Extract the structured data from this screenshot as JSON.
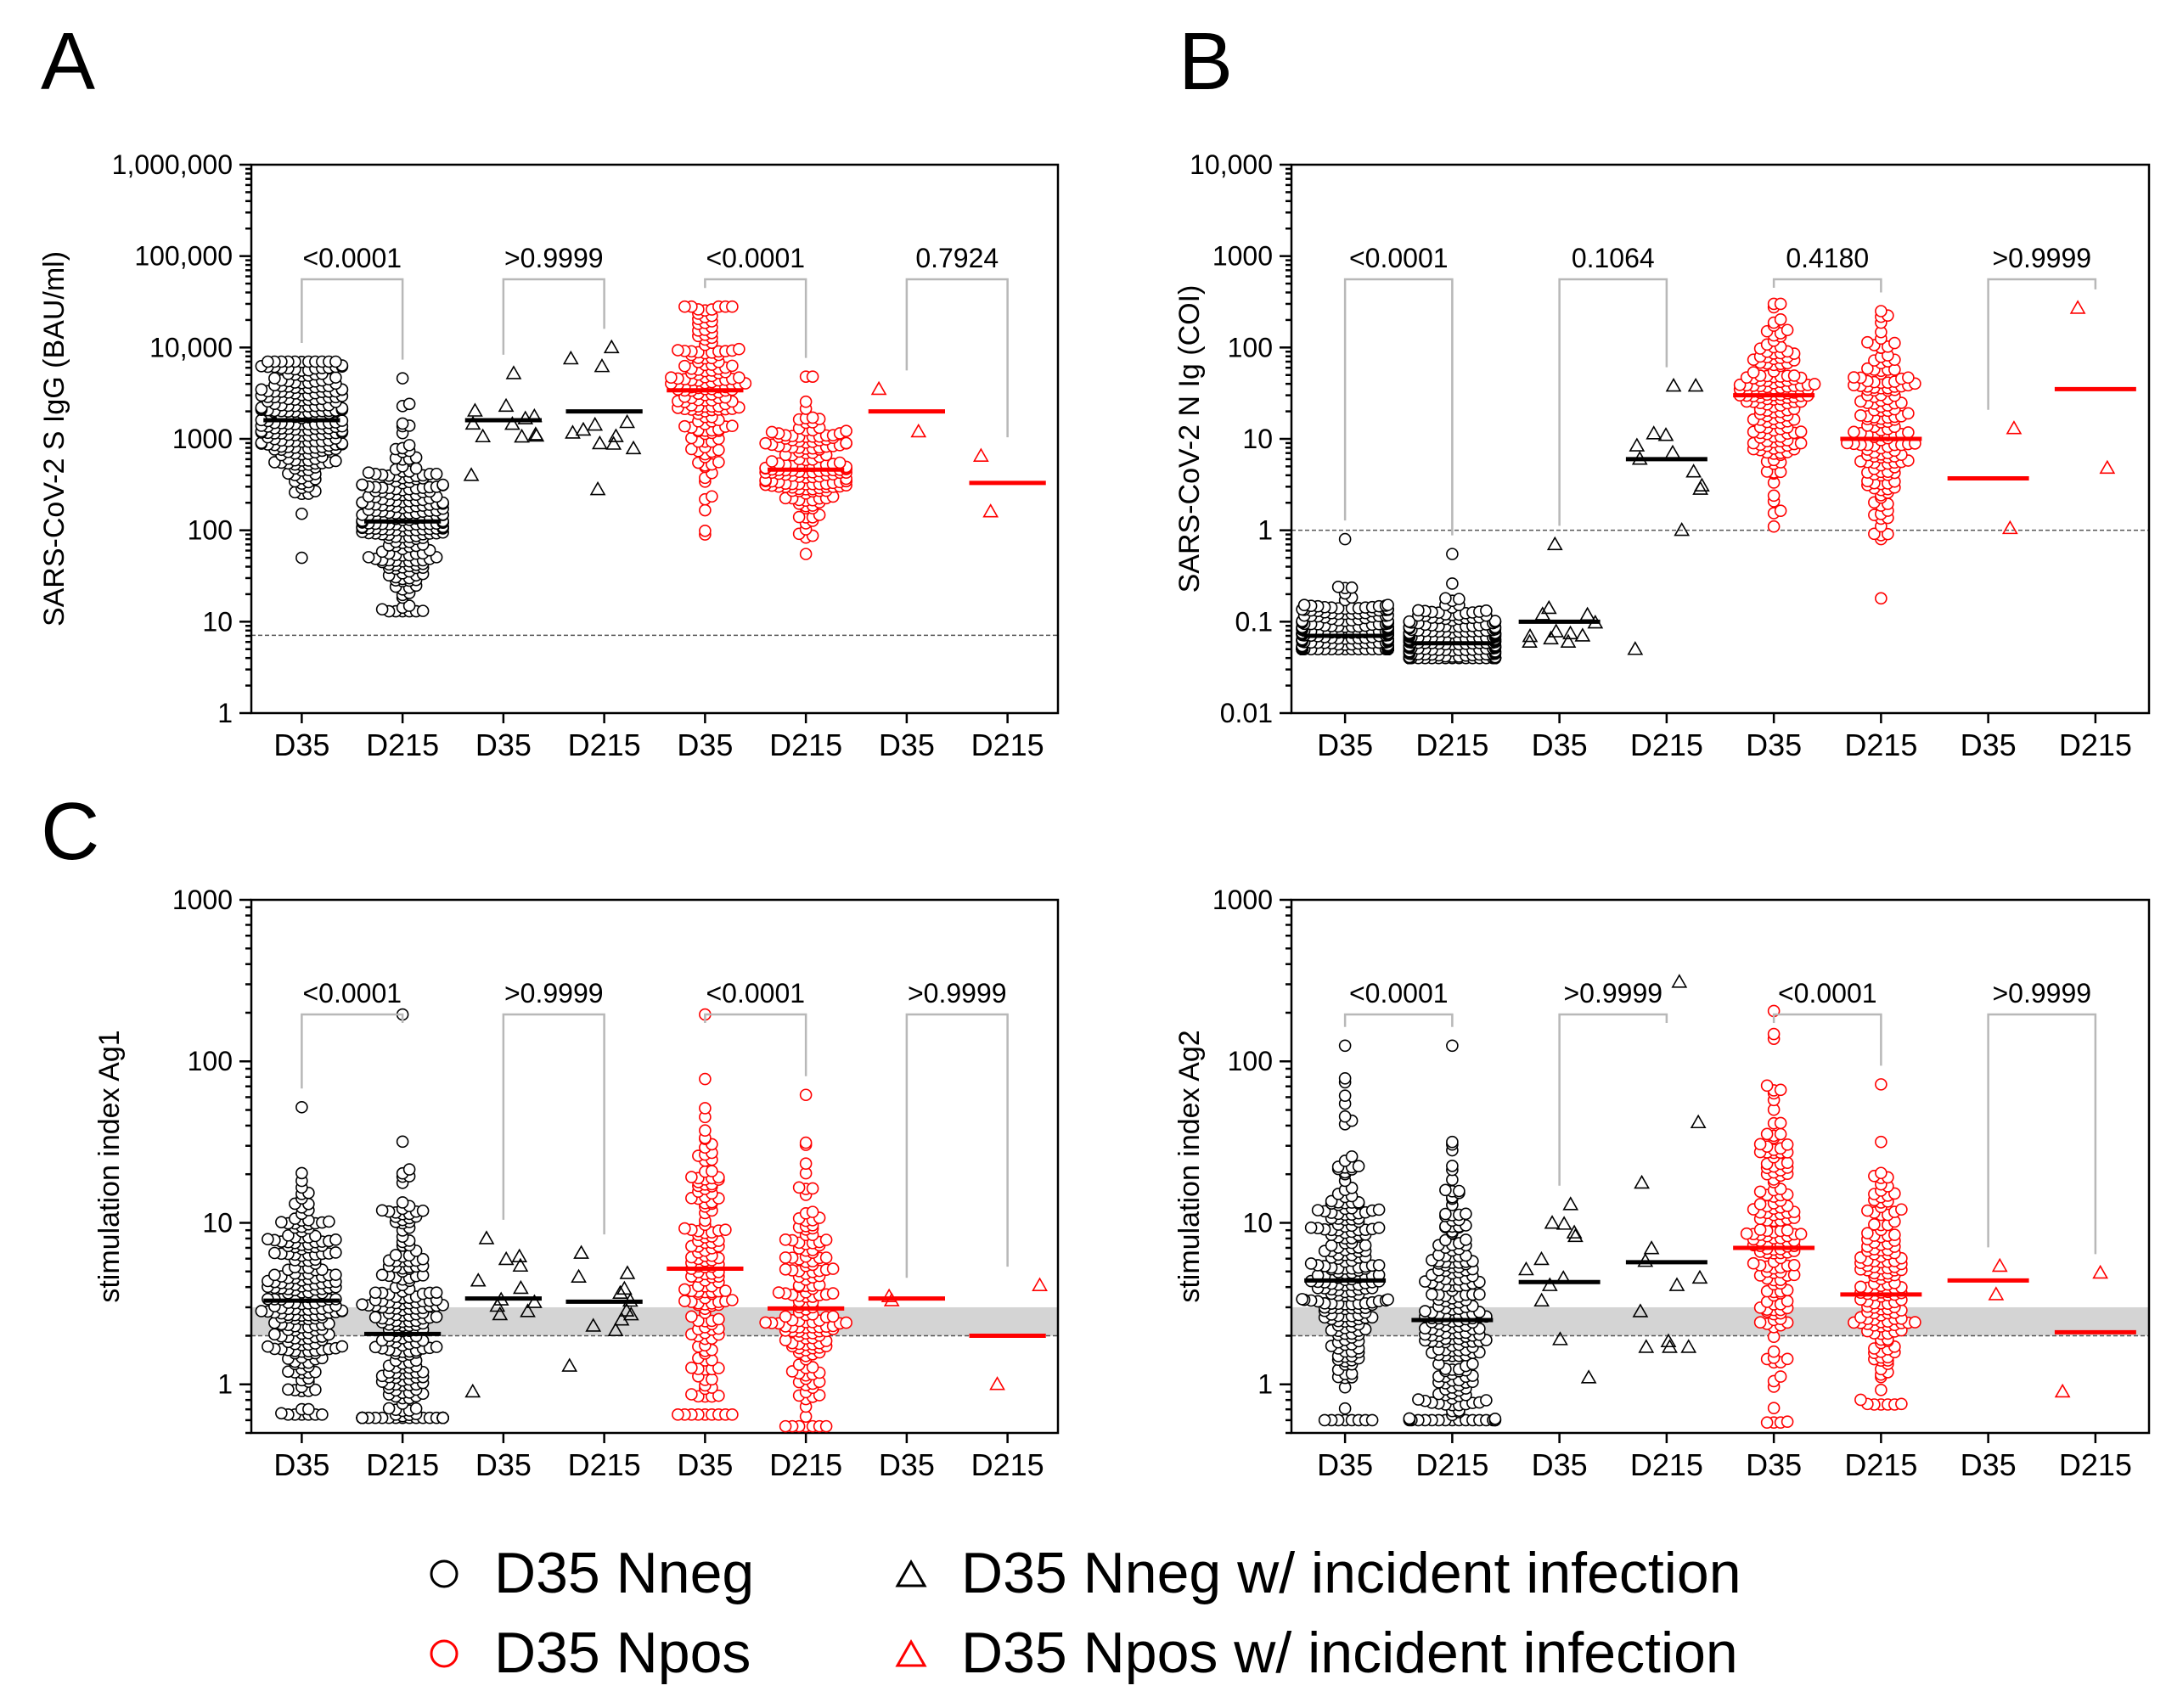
{
  "legend": {
    "items": [
      {
        "symbol": "circle",
        "color": "#000000",
        "label": "D35 Nneg"
      },
      {
        "symbol": "triangle",
        "color": "#000000",
        "label": "D35 Nneg w/ incident infection"
      },
      {
        "symbol": "circle",
        "color": "#ff0000",
        "label": "D35 Npos"
      },
      {
        "symbol": "triangle",
        "color": "#ff0000",
        "label": "D35 Npos w/ incident infection"
      }
    ]
  },
  "colors": {
    "black": "#000000",
    "red": "#ff0000",
    "gray_band": "#d4d4d4",
    "bracket": "#b8b8b8"
  },
  "chart_data": [
    {
      "panel": "A",
      "type": "scatter",
      "scale": "log",
      "ylabel": "SARS-CoV-2 S IgG (BAU/ml)",
      "ylim": [
        1,
        1000000
      ],
      "yticks": [
        1,
        10,
        100,
        1000,
        10000,
        100000,
        1000000
      ],
      "ytick_labels": [
        "1",
        "10",
        "100",
        "1000",
        "10,000",
        "100,000",
        "1,000,000"
      ],
      "categories": [
        "D35",
        "D215",
        "D35",
        "D215",
        "D35",
        "D215",
        "D35",
        "D215"
      ],
      "threshold": 7.1,
      "band": null,
      "groups": [
        {
          "marker": "circle",
          "color": "#000000",
          "n": 230,
          "median": 1600,
          "min": 50,
          "max": 7000
        },
        {
          "marker": "circle",
          "color": "#000000",
          "n": 230,
          "median": 125,
          "min": 13,
          "max": 4600
        },
        {
          "marker": "triangle",
          "color": "#000000",
          "n": 12,
          "median": 1600,
          "min": 400,
          "max": 5200
        },
        {
          "marker": "triangle",
          "color": "#000000",
          "n": 12,
          "median": 2000,
          "min": 280,
          "max": 10000
        },
        {
          "marker": "circle",
          "color": "#ff0000",
          "n": 160,
          "median": 3400,
          "min": 90,
          "max": 28000
        },
        {
          "marker": "circle",
          "color": "#ff0000",
          "n": 160,
          "median": 460,
          "min": 55,
          "max": 4800
        },
        {
          "marker": "triangle",
          "color": "#ff0000",
          "n": 2,
          "median": 2000,
          "min": 1200,
          "max": 3500
        },
        {
          "marker": "triangle",
          "color": "#ff0000",
          "n": 2,
          "median": 330,
          "min": 160,
          "max": 650
        }
      ],
      "comparisons": [
        {
          "pair": [
            0,
            1
          ],
          "p": "<0.0001"
        },
        {
          "pair": [
            2,
            3
          ],
          "p": ">0.9999"
        },
        {
          "pair": [
            4,
            5
          ],
          "p": "<0.0001"
        },
        {
          "pair": [
            6,
            7
          ],
          "p": "0.7924"
        }
      ]
    },
    {
      "panel": "B",
      "type": "scatter",
      "scale": "log",
      "ylabel": "SARS-CoV-2 N Ig (COI)",
      "ylim": [
        0.01,
        10000
      ],
      "yticks": [
        0.01,
        0.1,
        1,
        10,
        100,
        1000,
        10000
      ],
      "ytick_labels": [
        "0.01",
        "0.1",
        "1",
        "10",
        "100",
        "1000",
        "10,000"
      ],
      "categories": [
        "D35",
        "D215",
        "D35",
        "D215",
        "D35",
        "D215",
        "D35",
        "D215"
      ],
      "threshold": 1,
      "band": null,
      "groups": [
        {
          "marker": "circle",
          "color": "#000000",
          "n": 230,
          "median": 0.07,
          "min": 0.05,
          "max": 0.8
        },
        {
          "marker": "circle",
          "color": "#000000",
          "n": 230,
          "median": 0.058,
          "min": 0.04,
          "max": 0.55
        },
        {
          "marker": "triangle",
          "color": "#000000",
          "n": 12,
          "median": 0.1,
          "min": 0.06,
          "max": 0.7
        },
        {
          "marker": "triangle",
          "color": "#000000",
          "n": 12,
          "median": 6,
          "min": 0.05,
          "max": 38
        },
        {
          "marker": "circle",
          "color": "#ff0000",
          "n": 160,
          "median": 30,
          "min": 1.1,
          "max": 300
        },
        {
          "marker": "circle",
          "color": "#ff0000",
          "n": 160,
          "median": 10,
          "min": 0.18,
          "max": 250
        },
        {
          "marker": "triangle",
          "color": "#ff0000",
          "n": 2,
          "median": 3.7,
          "min": 1.05,
          "max": 13
        },
        {
          "marker": "triangle",
          "color": "#ff0000",
          "n": 2,
          "median": 35,
          "min": 4.8,
          "max": 270
        }
      ],
      "comparisons": [
        {
          "pair": [
            0,
            1
          ],
          "p": "<0.0001"
        },
        {
          "pair": [
            2,
            3
          ],
          "p": "0.1064"
        },
        {
          "pair": [
            4,
            5
          ],
          "p": "0.4180"
        },
        {
          "pair": [
            6,
            7
          ],
          "p": ">0.9999"
        }
      ]
    },
    {
      "panel": "C",
      "type": "scatter",
      "scale": "log",
      "ylabel": "stimulation index Ag1",
      "ylim": [
        0.5,
        1000
      ],
      "yticks": [
        1,
        10,
        100,
        1000
      ],
      "ytick_labels": [
        "1",
        "10",
        "100",
        "1000"
      ],
      "categories": [
        "D35",
        "D215",
        "D35",
        "D215",
        "D35",
        "D215",
        "D35",
        "D215"
      ],
      "threshold": 2,
      "band": [
        2,
        3
      ],
      "groups": [
        {
          "marker": "circle",
          "color": "#000000",
          "n": 230,
          "median": 3.3,
          "min": 0.65,
          "max": 52
        },
        {
          "marker": "circle",
          "color": "#000000",
          "n": 230,
          "median": 2.05,
          "min": 0.62,
          "max": 195
        },
        {
          "marker": "triangle",
          "color": "#000000",
          "n": 12,
          "median": 3.4,
          "min": 0.9,
          "max": 8
        },
        {
          "marker": "triangle",
          "color": "#000000",
          "n": 12,
          "median": 3.25,
          "min": 1.3,
          "max": 6.5
        },
        {
          "marker": "circle",
          "color": "#ff0000",
          "n": 160,
          "median": 5.2,
          "min": 0.65,
          "max": 195
        },
        {
          "marker": "circle",
          "color": "#ff0000",
          "n": 160,
          "median": 2.95,
          "min": 0.55,
          "max": 62
        },
        {
          "marker": "triangle",
          "color": "#ff0000",
          "n": 2,
          "median": 3.4,
          "min": 3.3,
          "max": 3.5
        },
        {
          "marker": "triangle",
          "color": "#ff0000",
          "n": 2,
          "median": 2,
          "min": 1,
          "max": 4.1
        }
      ],
      "comparisons": [
        {
          "pair": [
            0,
            1
          ],
          "p": "<0.0001"
        },
        {
          "pair": [
            2,
            3
          ],
          "p": ">0.9999"
        },
        {
          "pair": [
            4,
            5
          ],
          "p": "<0.0001"
        },
        {
          "pair": [
            6,
            7
          ],
          "p": ">0.9999"
        }
      ]
    },
    {
      "panel": "",
      "type": "scatter",
      "scale": "log",
      "ylabel": "stimulation index Ag2",
      "ylim": [
        0.5,
        1000
      ],
      "yticks": [
        1,
        10,
        100,
        1000
      ],
      "ytick_labels": [
        "1",
        "10",
        "100",
        "1000"
      ],
      "categories": [
        "D35",
        "D215",
        "D35",
        "D215",
        "D35",
        "D215",
        "D35",
        "D215"
      ],
      "threshold": 2,
      "band": [
        2,
        3
      ],
      "groups": [
        {
          "marker": "circle",
          "color": "#000000",
          "n": 230,
          "median": 4.4,
          "min": 0.6,
          "max": 125
        },
        {
          "marker": "circle",
          "color": "#000000",
          "n": 230,
          "median": 2.5,
          "min": 0.6,
          "max": 125
        },
        {
          "marker": "triangle",
          "color": "#000000",
          "n": 12,
          "median": 4.3,
          "min": 1.1,
          "max": 13
        },
        {
          "marker": "triangle",
          "color": "#000000",
          "n": 12,
          "median": 5.7,
          "min": 1.7,
          "max": 310
        },
        {
          "marker": "circle",
          "color": "#ff0000",
          "n": 160,
          "median": 7,
          "min": 0.58,
          "max": 205
        },
        {
          "marker": "circle",
          "color": "#ff0000",
          "n": 160,
          "median": 3.6,
          "min": 0.75,
          "max": 72
        },
        {
          "marker": "triangle",
          "color": "#ff0000",
          "n": 2,
          "median": 4.4,
          "min": 3.6,
          "max": 5.4
        },
        {
          "marker": "triangle",
          "color": "#ff0000",
          "n": 2,
          "median": 2.1,
          "min": 0.9,
          "max": 4.9
        }
      ],
      "comparisons": [
        {
          "pair": [
            0,
            1
          ],
          "p": "<0.0001"
        },
        {
          "pair": [
            2,
            3
          ],
          "p": ">0.9999"
        },
        {
          "pair": [
            4,
            5
          ],
          "p": "<0.0001"
        },
        {
          "pair": [
            6,
            7
          ],
          "p": ">0.9999"
        }
      ]
    }
  ]
}
